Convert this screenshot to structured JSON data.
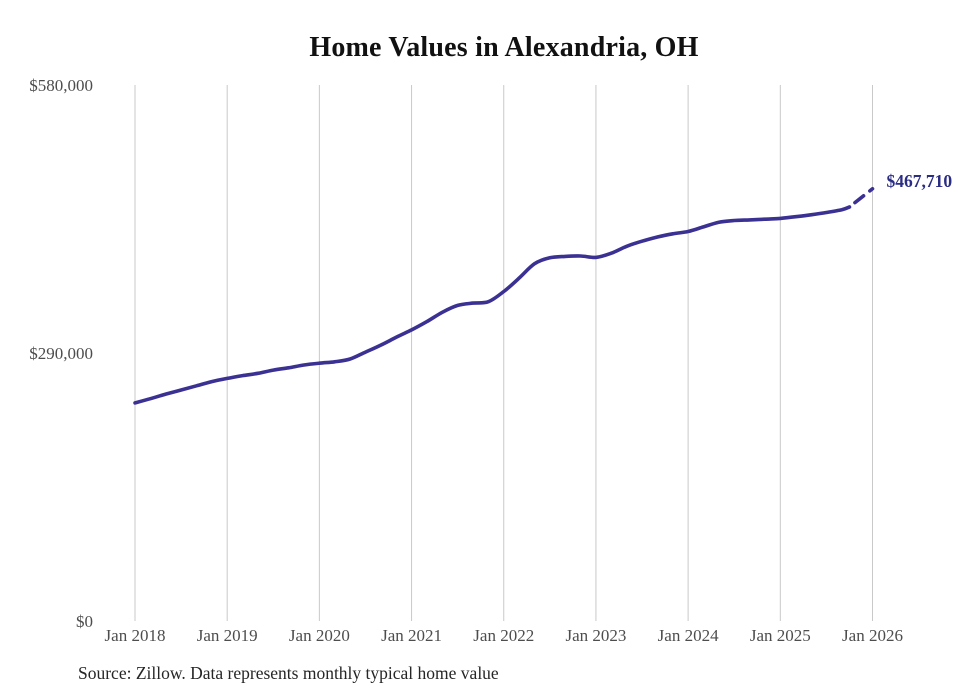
{
  "page": {
    "source_note": "Source: Zillow. Data represents monthly typical home value"
  },
  "style_colors": {
    "line": "#3a3193",
    "end_label": "#2b2d84",
    "gridline": "#c9c9c9",
    "tick_text": "#4d4d4d",
    "title_text": "#111111",
    "source_text": "#262626"
  },
  "chart_data": {
    "type": "line",
    "title": "Home Values in Alexandria, OH",
    "xlabel": "",
    "ylabel": "",
    "legend": "none",
    "grid": "vertical-only",
    "ylim": [
      0,
      580000
    ],
    "x_range_years": [
      2018,
      2026
    ],
    "y_ticks": [
      {
        "label": "$0",
        "value": 0
      },
      {
        "label": "$290,000",
        "value": 290000
      },
      {
        "label": "$580,000",
        "value": 580000
      }
    ],
    "x_tick_labels": [
      "Jan 2018",
      "Jan 2019",
      "Jan 2020",
      "Jan 2021",
      "Jan 2022",
      "Jan 2023",
      "Jan 2024",
      "Jan 2025",
      "Jan 2026"
    ],
    "series": [
      {
        "name": "Monthly typical home value",
        "color": "#3a3193",
        "points": [
          [
            "2018-01",
            236000
          ],
          [
            "2018-03",
            240500
          ],
          [
            "2018-05",
            245500
          ],
          [
            "2018-07",
            250000
          ],
          [
            "2018-09",
            254500
          ],
          [
            "2018-11",
            259000
          ],
          [
            "2019-01",
            262500
          ],
          [
            "2019-03",
            265500
          ],
          [
            "2019-05",
            268000
          ],
          [
            "2019-07",
            271500
          ],
          [
            "2019-09",
            274000
          ],
          [
            "2019-11",
            277000
          ],
          [
            "2020-01",
            279000
          ],
          [
            "2020-03",
            280500
          ],
          [
            "2020-05",
            283500
          ],
          [
            "2020-07",
            291000
          ],
          [
            "2020-09",
            298500
          ],
          [
            "2020-11",
            307000
          ],
          [
            "2021-01",
            315000
          ],
          [
            "2021-03",
            324000
          ],
          [
            "2021-05",
            334000
          ],
          [
            "2021-07",
            341500
          ],
          [
            "2021-09",
            344000
          ],
          [
            "2021-11",
            345500
          ],
          [
            "2022-01",
            356500
          ],
          [
            "2022-03",
            371000
          ],
          [
            "2022-05",
            386500
          ],
          [
            "2022-07",
            393000
          ],
          [
            "2022-09",
            394500
          ],
          [
            "2022-11",
            395000
          ],
          [
            "2023-01",
            393500
          ],
          [
            "2023-03",
            398000
          ],
          [
            "2023-05",
            405500
          ],
          [
            "2023-07",
            411000
          ],
          [
            "2023-09",
            415500
          ],
          [
            "2023-11",
            419000
          ],
          [
            "2024-01",
            421500
          ],
          [
            "2024-03",
            426500
          ],
          [
            "2024-05",
            431500
          ],
          [
            "2024-07",
            433400
          ],
          [
            "2024-09",
            434000
          ],
          [
            "2024-11",
            434800
          ],
          [
            "2025-01",
            435700
          ],
          [
            "2025-03",
            437500
          ],
          [
            "2025-05",
            439500
          ],
          [
            "2025-07",
            442000
          ],
          [
            "2025-09",
            445000
          ],
          [
            "2025-10",
            448000
          ]
        ]
      }
    ],
    "forecast": {
      "date": "2026-01",
      "value": 467710,
      "line_style": "dashed"
    },
    "end_label": {
      "text": "$467,710",
      "color": "#2b2d84"
    }
  }
}
